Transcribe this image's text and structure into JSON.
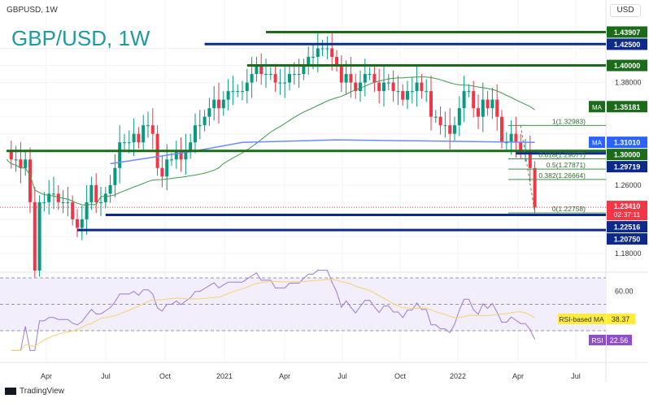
{
  "header": {
    "symbol": "GBPUSD, 1W",
    "title": "GBP/USD, 1W",
    "currency": "USD"
  },
  "footer": {
    "brand": "TradingView"
  },
  "chart_data": {
    "type": "candlestick",
    "title": "GBP/USD, 1W",
    "x_ticks": [
      "Apr",
      "Jul",
      "Oct",
      "2021",
      "Apr",
      "Jul",
      "Oct",
      "2022",
      "Apr",
      "Jul"
    ],
    "y_ticks": [
      "1.18000",
      "1.20000",
      "1.22000",
      "1.24000",
      "1.26000",
      "1.28000",
      "1.30000",
      "1.32000",
      "1.34000",
      "1.36000",
      "1.38000",
      "1.40000",
      "1.42000"
    ],
    "ylim": [
      1.16,
      1.45
    ],
    "weekly_closes": [
      1.3,
      1.29,
      1.29,
      1.28,
      1.29,
      1.24,
      1.16,
      1.24,
      1.24,
      1.25,
      1.25,
      1.24,
      1.24,
      1.24,
      1.22,
      1.21,
      1.22,
      1.24,
      1.26,
      1.24,
      1.24,
      1.25,
      1.26,
      1.28,
      1.31,
      1.31,
      1.31,
      1.32,
      1.31,
      1.33,
      1.33,
      1.32,
      1.28,
      1.27,
      1.29,
      1.29,
      1.3,
      1.29,
      1.3,
      1.31,
      1.33,
      1.33,
      1.34,
      1.35,
      1.36,
      1.35,
      1.36,
      1.37,
      1.37,
      1.37,
      1.37,
      1.38,
      1.39,
      1.4,
      1.39,
      1.39,
      1.39,
      1.38,
      1.38,
      1.38,
      1.39,
      1.39,
      1.39,
      1.4,
      1.41,
      1.41,
      1.42,
      1.42,
      1.42,
      1.41,
      1.4,
      1.38,
      1.39,
      1.38,
      1.37,
      1.38,
      1.39,
      1.39,
      1.38,
      1.37,
      1.38,
      1.38,
      1.37,
      1.37,
      1.36,
      1.37,
      1.37,
      1.38,
      1.37,
      1.37,
      1.34,
      1.34,
      1.33,
      1.33,
      1.32,
      1.33,
      1.35,
      1.37,
      1.37,
      1.35,
      1.34,
      1.36,
      1.35,
      1.36,
      1.34,
      1.31,
      1.31,
      1.32,
      1.31,
      1.3,
      1.3,
      1.28,
      1.234
    ],
    "ma_200_points": [
      [
        22,
        1.285
      ],
      [
        40,
        1.3
      ],
      [
        50,
        1.31
      ],
      [
        70,
        1.313
      ],
      [
        112,
        1.31
      ]
    ],
    "levels": [
      {
        "label": "1.43907",
        "value": 1.43907,
        "color": "#1b6b1b",
        "from_week": 55
      },
      {
        "label": "1.42500",
        "value": 1.425,
        "color": "#0d2a8a",
        "from_week": 42
      },
      {
        "label": "1.40000",
        "value": 1.4,
        "color": "#1b6b1b",
        "from_week": 51
      },
      {
        "label": "1.30000",
        "value": 1.3,
        "color": "#1b6b1b",
        "from_week": 0
      },
      {
        "label": "1.29719",
        "value": 1.29719,
        "color": "#0d2a8a",
        "from_week": 108
      },
      {
        "label": "1.22516",
        "value": 1.22516,
        "color": "#0d2a8a",
        "from_week": 21
      },
      {
        "label": "1.20750",
        "value": 1.2075,
        "color": "#0d2a8a",
        "from_week": 15
      }
    ],
    "ma_tags": [
      {
        "name": "MA",
        "label": "1.35181",
        "value": 1.35181,
        "color": "#1b6b1b"
      },
      {
        "name": "MA",
        "label": "1.31010",
        "value": 1.3101,
        "color": "#2962ff"
      }
    ],
    "current_price": {
      "label": "1.23410",
      "value": 1.2341,
      "countdown": "02:37:11",
      "color": "#f23645"
    },
    "fib": [
      {
        "label": "1(1.32983)",
        "value": 1.32983
      },
      {
        "label": "0.618(1.29077)",
        "value": 1.29077
      },
      {
        "label": "0.5(1.27871)",
        "value": 1.27871
      },
      {
        "label": "0.382(1.26664)",
        "value": 1.26664
      },
      {
        "label": "0(1.22758)",
        "value": 1.22758
      }
    ],
    "rsi": {
      "ticks": [
        "60.00"
      ],
      "ma_label": "RSI-based MA",
      "ma_value": "38.37",
      "rsi_label": "RSI",
      "rsi_value": "22.56",
      "levels": [
        70,
        50,
        30
      ]
    }
  }
}
